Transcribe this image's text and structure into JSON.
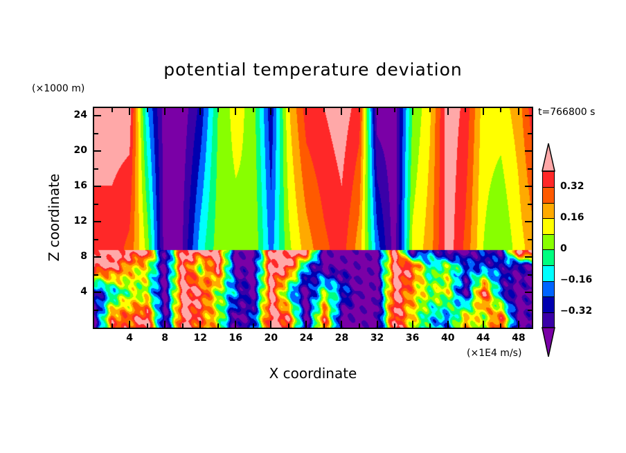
{
  "chart_data": {
    "type": "heatmap",
    "title": "potential temperature deviation",
    "xlabel": "X coordinate",
    "ylabel": "Z coordinate",
    "x_unit": "(×1E4 m/s)",
    "y_unit": "(×1000 m)",
    "annotation": "t=766800 s",
    "xlim": [
      0,
      49.5
    ],
    "ylim": [
      0,
      24.9
    ],
    "x_ticks": [
      "4",
      "8",
      "12",
      "16",
      "20",
      "24",
      "28",
      "32",
      "36",
      "40",
      "44",
      "48"
    ],
    "y_ticks": [
      "4",
      "8",
      "12",
      "16",
      "20",
      "24"
    ],
    "colorbar": {
      "levels": [
        -0.4,
        -0.32,
        -0.24,
        -0.16,
        -0.08,
        0,
        0.08,
        0.16,
        0.24,
        0.32,
        0.4
      ],
      "labels": [
        "-0.32",
        "-0.16",
        "0",
        "0.16",
        "0.32"
      ],
      "label_values": [
        -0.32,
        -0.16,
        0,
        0.16,
        0.32
      ],
      "colors": [
        "#7a00a6",
        "#3a00a8",
        "#0000b0",
        "#0064ff",
        "#00ffff",
        "#00ff80",
        "#88ff00",
        "#ffff00",
        "#ffaa00",
        "#ff5a00",
        "#ff2828",
        "#ffa8a8"
      ],
      "extend": "both"
    },
    "grid": {
      "x": [
        0,
        2,
        4,
        6,
        8,
        10,
        12,
        14,
        16,
        18,
        20,
        22,
        24,
        26,
        28,
        30,
        32,
        34,
        36,
        38,
        40,
        42,
        44,
        46,
        48,
        49.5
      ],
      "lower_layer_z": [
        1,
        4,
        7,
        8.6
      ],
      "lower_layer": [
        [
          -0.45,
          0.3,
          0.3,
          0.45,
          -0.45,
          0.45,
          0.3,
          0.12,
          -0.45,
          -0.28,
          0.45,
          0.36,
          -0.45,
          0.36,
          -0.45,
          -0.45,
          -0.45,
          0.45,
          0.12,
          -0.12,
          -0.2,
          0.2,
          0.04,
          0.36,
          -0.45,
          -0.4
        ],
        [
          -0.36,
          -0.15,
          0.04,
          0.04,
          -0.45,
          0.45,
          0.4,
          0.04,
          -0.2,
          -0.45,
          0.45,
          -0.12,
          -0.45,
          0.04,
          -0.2,
          -0.45,
          -0.45,
          0.45,
          0.2,
          0.04,
          0.12,
          -0.45,
          0.45,
          -0.28,
          -0.45,
          -0.4
        ],
        [
          0.45,
          0.45,
          0.2,
          0.12,
          -0.45,
          0.45,
          0,
          0.45,
          -0.45,
          -0.45,
          0.45,
          0.45,
          -0.2,
          -0.45,
          -0.45,
          -0.45,
          -0.45,
          0.45,
          0.36,
          -0.12,
          0.04,
          -0.2,
          -0.28,
          -0.28,
          -0.36,
          -0.36
        ],
        [
          0.45,
          0.45,
          0.45,
          0.45,
          -0.45,
          0.45,
          0.45,
          0.45,
          -0.45,
          -0.45,
          0.45,
          0.45,
          0.45,
          -0.45,
          -0.45,
          -0.45,
          -0.45,
          0.45,
          -0.45,
          -0.2,
          -0.45,
          -0.45,
          -0.3,
          -0.36,
          0.45,
          0.45
        ]
      ],
      "upper_layer_z": [
        9,
        24.9
      ],
      "upper_layer": [
        [
          0.36,
          0.36,
          0.3,
          0.05,
          -0.45,
          -0.4,
          -0.12,
          0.04,
          0.04,
          0.08,
          -0.2,
          0.06,
          0.2,
          0.3,
          0.36,
          0.2,
          -0.2,
          -0.45,
          0.1,
          0.2,
          0.45,
          0.3,
          0.08,
          0.0,
          0.12,
          0.2
        ],
        [
          0.45,
          0.45,
          0.45,
          -0.15,
          -0.45,
          -0.45,
          -0.3,
          0.0,
          0.12,
          0.04,
          -0.3,
          0.15,
          0.36,
          0.4,
          0.45,
          0.36,
          -0.45,
          -0.45,
          0.0,
          0.15,
          0.45,
          0.38,
          0.12,
          0.12,
          0.2,
          0.36
        ]
      ],
      "interface_z": 8.8
    }
  }
}
